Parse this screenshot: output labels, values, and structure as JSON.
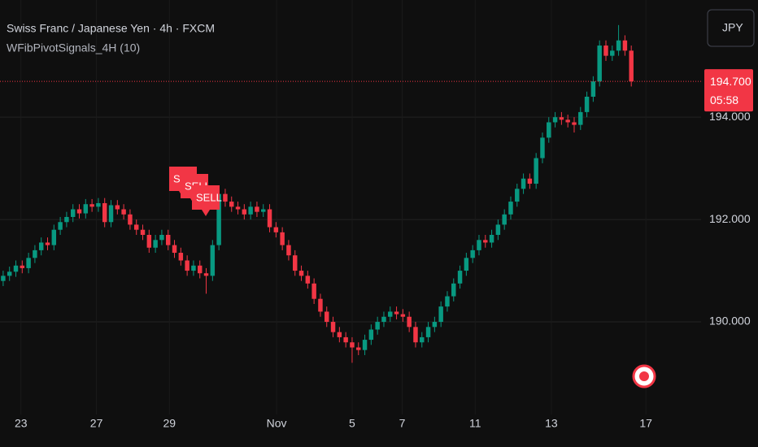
{
  "chart_data": {
    "type": "candlestick",
    "title": "Swiss Franc / Japanese Yen · 4h · FXCM",
    "subtitle": "WFibPivotSignals_4H (10)",
    "currency_button": "JPY",
    "countdown": "05:58",
    "annotations": [
      "SELL",
      "SELL",
      "SELL"
    ],
    "last_price": {
      "value": 194.7,
      "label": "194.700"
    },
    "up_color": "#089981",
    "down_color": "#f23645",
    "grid": true,
    "xlim": [
      -0.5,
      110
    ],
    "xticks": [
      {
        "value": 2.8,
        "label": "23"
      },
      {
        "value": 14.7,
        "label": "27"
      },
      {
        "value": 26.2,
        "label": "29"
      },
      {
        "value": 43.1,
        "label": "Nov"
      },
      {
        "value": 55,
        "label": "5"
      },
      {
        "value": 62.9,
        "label": "7"
      },
      {
        "value": 74.4,
        "label": "11"
      },
      {
        "value": 86.4,
        "label": "13"
      },
      {
        "value": 101.3,
        "label": "17"
      }
    ],
    "ylim": [
      188.19,
      196.29
    ],
    "yticks": [
      {
        "value": 190,
        "label": "190.000"
      },
      {
        "value": 192,
        "label": "192.000"
      },
      {
        "value": 194,
        "label": "194.000"
      }
    ],
    "open": [
      190.8,
      190.9,
      190.98,
      191.1,
      191.05,
      191.25,
      191.4,
      191.55,
      191.5,
      191.8,
      191.95,
      192.05,
      192.2,
      192.12,
      192.3,
      192.25,
      192.32,
      191.95,
      192.28,
      192.2,
      192.1,
      191.9,
      191.8,
      191.7,
      191.45,
      191.6,
      191.7,
      191.5,
      191.35,
      191.2,
      191.0,
      191.1,
      190.95,
      190.9,
      191.5,
      192.5,
      192.35,
      192.25,
      192.2,
      192.1,
      192.25,
      192.15,
      192.2,
      191.85,
      191.75,
      191.5,
      191.3,
      191.0,
      190.9,
      190.75,
      190.45,
      190.2,
      190.0,
      189.8,
      189.7,
      189.6,
      189.5,
      189.45,
      189.65,
      189.85,
      190.0,
      190.1,
      190.2,
      190.15,
      190.1,
      189.9,
      189.6,
      189.7,
      189.9,
      190.0,
      190.3,
      190.5,
      190.75,
      191.0,
      191.25,
      191.4,
      191.6,
      191.55,
      191.7,
      191.9,
      192.1,
      192.35,
      192.6,
      192.8,
      192.7,
      193.2,
      193.6,
      193.9,
      194.0,
      193.95,
      193.9,
      193.85,
      194.1,
      194.4,
      194.7,
      195.4,
      195.2,
      195.3,
      195.5,
      195.3
    ],
    "high": [
      191.0,
      191.08,
      191.2,
      191.2,
      191.35,
      191.5,
      191.65,
      191.65,
      191.9,
      192.05,
      192.15,
      192.3,
      192.3,
      192.4,
      192.4,
      192.42,
      192.42,
      192.38,
      192.38,
      192.3,
      192.2,
      192.0,
      191.9,
      191.8,
      191.7,
      191.8,
      191.8,
      191.6,
      191.45,
      191.3,
      191.2,
      191.2,
      191.05,
      191.6,
      192.6,
      192.6,
      192.45,
      192.35,
      192.3,
      192.35,
      192.35,
      192.3,
      192.3,
      191.95,
      191.85,
      191.6,
      191.4,
      191.1,
      191.0,
      190.85,
      190.55,
      190.3,
      190.1,
      189.9,
      189.8,
      189.7,
      189.6,
      189.75,
      189.95,
      190.1,
      190.2,
      190.3,
      190.3,
      190.25,
      190.2,
      190.0,
      189.8,
      190.0,
      190.1,
      190.4,
      190.6,
      190.85,
      191.1,
      191.35,
      191.5,
      191.7,
      191.7,
      191.8,
      192.0,
      192.2,
      192.45,
      192.7,
      192.9,
      192.9,
      193.3,
      193.7,
      194.0,
      194.1,
      194.1,
      194.05,
      194.0,
      194.2,
      194.5,
      194.8,
      195.5,
      195.5,
      195.4,
      195.8,
      195.6,
      195.4
    ],
    "low": [
      190.7,
      190.8,
      190.88,
      190.95,
      190.95,
      191.15,
      191.3,
      191.4,
      191.4,
      191.7,
      191.85,
      191.95,
      192.02,
      192.02,
      192.15,
      192.15,
      191.85,
      191.85,
      192.1,
      192.0,
      191.8,
      191.7,
      191.6,
      191.35,
      191.35,
      191.5,
      191.4,
      191.25,
      191.1,
      190.9,
      190.9,
      190.85,
      190.55,
      190.8,
      191.4,
      192.25,
      192.15,
      192.1,
      192.0,
      192.0,
      192.05,
      192.05,
      191.75,
      191.65,
      191.4,
      191.2,
      190.9,
      190.8,
      190.65,
      190.35,
      190.1,
      189.9,
      189.7,
      189.6,
      189.5,
      189.2,
      189.35,
      189.35,
      189.55,
      189.75,
      189.9,
      190.0,
      190.05,
      190.0,
      189.8,
      189.5,
      189.5,
      189.6,
      189.8,
      189.9,
      190.2,
      190.4,
      190.65,
      190.9,
      191.15,
      191.3,
      191.45,
      191.45,
      191.6,
      191.8,
      192.0,
      192.25,
      192.5,
      192.6,
      192.6,
      193.1,
      193.5,
      193.8,
      193.85,
      193.8,
      193.7,
      193.75,
      194.0,
      194.3,
      194.6,
      195.1,
      195.1,
      195.2,
      195.2,
      194.6
    ],
    "close": [
      190.9,
      190.98,
      191.1,
      191.05,
      191.25,
      191.4,
      191.55,
      191.5,
      191.8,
      191.95,
      192.05,
      192.2,
      192.12,
      192.3,
      192.25,
      192.32,
      191.95,
      192.28,
      192.2,
      192.1,
      191.9,
      191.8,
      191.7,
      191.45,
      191.6,
      191.7,
      191.5,
      191.35,
      191.2,
      191.0,
      191.1,
      190.95,
      190.9,
      191.5,
      192.5,
      192.35,
      192.25,
      192.2,
      192.1,
      192.25,
      192.15,
      192.2,
      191.85,
      191.75,
      191.5,
      191.3,
      191.0,
      190.9,
      190.75,
      190.45,
      190.2,
      190.0,
      189.8,
      189.7,
      189.6,
      189.5,
      189.45,
      189.65,
      189.85,
      190.0,
      190.1,
      190.2,
      190.15,
      190.1,
      189.9,
      189.6,
      189.7,
      189.9,
      190.0,
      190.3,
      190.5,
      190.75,
      191.0,
      191.25,
      191.4,
      191.6,
      191.55,
      191.7,
      191.9,
      192.1,
      192.35,
      192.6,
      192.8,
      192.7,
      193.2,
      193.6,
      193.9,
      194.0,
      193.95,
      193.9,
      193.85,
      194.1,
      194.4,
      194.7,
      195.4,
      195.2,
      195.3,
      195.5,
      195.3,
      194.7
    ]
  }
}
